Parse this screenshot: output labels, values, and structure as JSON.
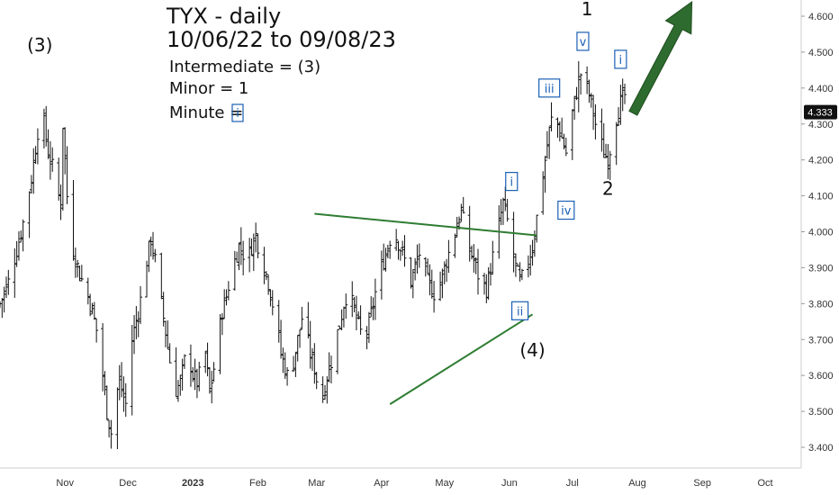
{
  "chart_data": {
    "type": "bar",
    "subtype": "ohlc",
    "symbol": "TYX",
    "title": "TYX - daily",
    "subtitle": "10/06/22 to 09/08/23",
    "notes": [
      "Intermediate = (3)",
      "Minor = 1",
      "Minute = "
    ],
    "minute_label": "i",
    "last_price": "4.333",
    "ylim": [
      3.35,
      4.66
    ],
    "y_ticks": [
      "4.600",
      "4.500",
      "4.400",
      "4.300",
      "4.200",
      "4.100",
      "4.000",
      "3.900",
      "3.800",
      "3.700",
      "3.600",
      "3.500",
      "3.400"
    ],
    "x_ticks": [
      "Nov",
      "Dec",
      "2023",
      "Feb",
      "Mar",
      "Apr",
      "May",
      "Jun",
      "Jul",
      "Aug",
      "Sep",
      "Oct"
    ],
    "x_tick_days": [
      31,
      61,
      92,
      123,
      151,
      182,
      212,
      243,
      273,
      304,
      335,
      365
    ],
    "date_range_days": [
      0,
      380
    ],
    "price_path": [
      [
        0,
        3.8
      ],
      [
        4,
        3.86
      ],
      [
        8,
        3.95
      ],
      [
        12,
        4.05
      ],
      [
        15,
        4.15
      ],
      [
        18,
        4.28
      ],
      [
        19,
        4.43
      ],
      [
        21,
        4.3
      ],
      [
        23,
        4.22
      ],
      [
        25,
        4.18
      ],
      [
        27,
        4.12
      ],
      [
        29,
        4.08
      ],
      [
        30,
        4.3
      ],
      [
        31,
        4.2
      ],
      [
        32,
        4.1
      ],
      [
        33,
        4.05
      ],
      [
        35,
        3.95
      ],
      [
        38,
        3.88
      ],
      [
        41,
        3.84
      ],
      [
        44,
        3.78
      ],
      [
        47,
        3.7
      ],
      [
        49,
        3.6
      ],
      [
        51,
        3.5
      ],
      [
        53,
        3.44
      ],
      [
        55,
        3.54
      ],
      [
        57,
        3.58
      ],
      [
        60,
        3.52
      ],
      [
        61,
        3.62
      ],
      [
        63,
        3.7
      ],
      [
        66,
        3.78
      ],
      [
        68,
        3.84
      ],
      [
        70,
        3.92
      ],
      [
        72,
        3.98
      ],
      [
        74,
        3.92
      ],
      [
        76,
        3.84
      ],
      [
        78,
        3.76
      ],
      [
        80,
        3.68
      ],
      [
        82,
        3.6
      ],
      [
        84,
        3.56
      ],
      [
        86,
        3.58
      ],
      [
        88,
        3.64
      ],
      [
        90,
        3.66
      ],
      [
        92,
        3.6
      ],
      [
        94,
        3.58
      ],
      [
        96,
        3.62
      ],
      [
        98,
        3.66
      ],
      [
        100,
        3.55
      ],
      [
        102,
        3.62
      ],
      [
        104,
        3.7
      ],
      [
        106,
        3.78
      ],
      [
        108,
        3.82
      ],
      [
        110,
        3.88
      ],
      [
        112,
        3.92
      ],
      [
        114,
        3.96
      ],
      [
        116,
        3.94
      ],
      [
        118,
        3.92
      ],
      [
        120,
        3.96
      ],
      [
        122,
        3.99
      ],
      [
        124,
        3.94
      ],
      [
        126,
        3.9
      ],
      [
        128,
        3.86
      ],
      [
        130,
        3.8
      ],
      [
        132,
        3.75
      ],
      [
        134,
        3.66
      ],
      [
        136,
        3.62
      ],
      [
        138,
        3.58
      ],
      [
        140,
        3.64
      ],
      [
        142,
        3.7
      ],
      [
        144,
        3.76
      ],
      [
        146,
        3.72
      ],
      [
        148,
        3.66
      ],
      [
        150,
        3.62
      ],
      [
        152,
        3.56
      ],
      [
        154,
        3.54
      ],
      [
        156,
        3.6
      ],
      [
        158,
        3.64
      ],
      [
        160,
        3.7
      ],
      [
        162,
        3.74
      ],
      [
        164,
        3.8
      ],
      [
        166,
        3.84
      ],
      [
        168,
        3.8
      ],
      [
        170,
        3.76
      ],
      [
        172,
        3.72
      ],
      [
        174,
        3.7
      ],
      [
        176,
        3.74
      ],
      [
        178,
        3.8
      ],
      [
        180,
        3.86
      ],
      [
        182,
        3.9
      ],
      [
        184,
        3.94
      ],
      [
        186,
        3.98
      ],
      [
        188,
        4.0
      ],
      [
        190,
        3.97
      ],
      [
        192,
        3.94
      ],
      [
        194,
        3.9
      ],
      [
        196,
        3.86
      ],
      [
        198,
        3.9
      ],
      [
        200,
        3.94
      ],
      [
        202,
        3.9
      ],
      [
        204,
        3.86
      ],
      [
        206,
        3.84
      ],
      [
        208,
        3.82
      ],
      [
        210,
        3.86
      ],
      [
        212,
        3.9
      ],
      [
        214,
        3.94
      ],
      [
        216,
        3.98
      ],
      [
        218,
        4.02
      ],
      [
        220,
        4.06
      ],
      [
        222,
        4.0
      ],
      [
        224,
        3.95
      ],
      [
        226,
        3.92
      ],
      [
        228,
        3.88
      ],
      [
        230,
        3.86
      ],
      [
        232,
        3.84
      ],
      [
        234,
        3.9
      ],
      [
        236,
        3.96
      ],
      [
        238,
        4.02
      ],
      [
        240,
        4.08
      ],
      [
        242,
        4.03
      ],
      [
        244,
        3.96
      ],
      [
        246,
        3.9
      ],
      [
        248,
        3.86
      ],
      [
        250,
        3.88
      ],
      [
        252,
        3.92
      ],
      [
        254,
        3.96
      ],
      [
        256,
        4.04
      ],
      [
        258,
        4.12
      ],
      [
        260,
        4.2
      ],
      [
        262,
        4.28
      ],
      [
        264,
        4.34
      ],
      [
        266,
        4.3
      ],
      [
        268,
        4.26
      ],
      [
        270,
        4.22
      ],
      [
        272,
        4.3
      ],
      [
        274,
        4.36
      ],
      [
        276,
        4.42
      ],
      [
        278,
        4.46
      ],
      [
        280,
        4.4
      ],
      [
        282,
        4.36
      ],
      [
        284,
        4.3
      ],
      [
        286,
        4.26
      ],
      [
        288,
        4.22
      ],
      [
        290,
        4.2
      ],
      [
        292,
        4.26
      ],
      [
        294,
        4.32
      ],
      [
        296,
        4.36
      ],
      [
        298,
        4.38
      ],
      [
        300,
        4.33
      ]
    ],
    "trendlines": [
      {
        "from": [
          150,
          4.05
        ],
        "to": [
          256,
          3.99
        ],
        "color": "#2e7d32"
      },
      {
        "from": [
          186,
          3.52
        ],
        "to": [
          254,
          3.77
        ],
        "color": "#2e7d32"
      }
    ],
    "arrow": {
      "from": [
        302,
        4.33
      ],
      "to": [
        330,
        4.64
      ],
      "color": "#2e6b2e"
    },
    "wave_labels": [
      {
        "text": "(3)",
        "at": [
          19,
          4.52
        ],
        "style": "big"
      },
      {
        "text": "1",
        "at": [
          280,
          4.62
        ],
        "style": "big"
      },
      {
        "text": "2",
        "at": [
          290,
          4.12
        ],
        "style": "big"
      },
      {
        "text": "(4)",
        "at": [
          254,
          3.67
        ],
        "style": "big"
      },
      {
        "text": "i",
        "at": [
          244,
          4.14
        ],
        "style": "box"
      },
      {
        "text": "ii",
        "at": [
          248,
          3.78
        ],
        "style": "box"
      },
      {
        "text": "iii",
        "at": [
          262,
          4.4
        ],
        "style": "box"
      },
      {
        "text": "iv",
        "at": [
          270,
          4.06
        ],
        "style": "box"
      },
      {
        "text": "v",
        "at": [
          278,
          4.53
        ],
        "style": "box"
      },
      {
        "text": "i",
        "at": [
          296,
          4.48
        ],
        "style": "box"
      }
    ],
    "grid": false,
    "legend": "none",
    "colors": {
      "bars": "#111111",
      "price_tag_bg": "#111111",
      "price_tag_fg": "#ffffff",
      "axis_line": "#cccccc"
    }
  }
}
